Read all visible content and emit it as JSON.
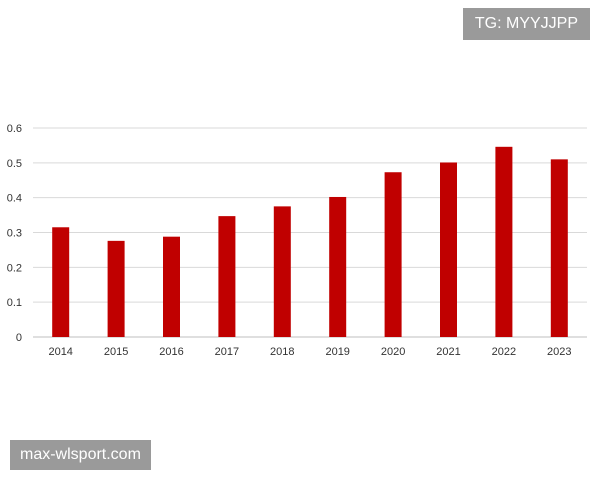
{
  "watermarks": {
    "top_right": "TG: MYYJJPP",
    "bottom_left": "max-wlsport.com"
  },
  "colors": {
    "bar": "#c00000",
    "grid": "#d9d9d9",
    "axis": "#bfbfbf",
    "badge_bg": "#9a9a9a"
  },
  "chart_data": {
    "type": "bar",
    "title": "",
    "xlabel": "",
    "ylabel": "",
    "categories": [
      "2014",
      "2015",
      "2016",
      "2017",
      "2018",
      "2019",
      "2020",
      "2021",
      "2022",
      "2023"
    ],
    "values": [
      0.315,
      0.276,
      0.288,
      0.347,
      0.375,
      0.402,
      0.473,
      0.501,
      0.546,
      0.51
    ],
    "ylim": [
      0,
      0.6
    ],
    "yticks": [
      "0",
      "0.1",
      "0.2",
      "0.3",
      "0.4",
      "0.5",
      "0.6"
    ],
    "grid": true,
    "legend": "none"
  }
}
